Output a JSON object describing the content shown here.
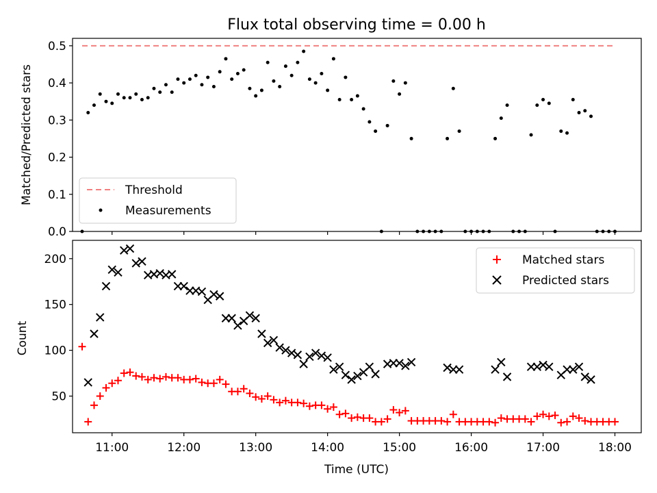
{
  "chart_data": [
    {
      "type": "scatter",
      "title": "Flux total observing time = 0.00 h",
      "xlabel": "",
      "ylabel": "Matched/Predicted stars",
      "xlim": [
        "10:27",
        "18:22"
      ],
      "ylim": [
        0,
        0.52
      ],
      "yticks": [
        "0.0",
        "0.1",
        "0.2",
        "0.3",
        "0.4",
        "0.5"
      ],
      "grid": false,
      "legend_position": "lower-left",
      "threshold": {
        "name": "Threshold",
        "value": 0.5,
        "x_start": "10:35",
        "x_end": "18:00",
        "color": "#f08080"
      },
      "measurements": {
        "name": "Measurements",
        "color": "#000000",
        "points": [
          [
            "10:35",
            0.0
          ],
          [
            "10:40",
            0.32
          ],
          [
            "10:45",
            0.34
          ],
          [
            "10:50",
            0.37
          ],
          [
            "10:55",
            0.35
          ],
          [
            "11:00",
            0.345
          ],
          [
            "11:05",
            0.37
          ],
          [
            "11:10",
            0.36
          ],
          [
            "11:15",
            0.36
          ],
          [
            "11:20",
            0.37
          ],
          [
            "11:25",
            0.355
          ],
          [
            "11:30",
            0.36
          ],
          [
            "11:35",
            0.385
          ],
          [
            "11:40",
            0.375
          ],
          [
            "11:45",
            0.395
          ],
          [
            "11:50",
            0.375
          ],
          [
            "11:55",
            0.41
          ],
          [
            "12:00",
            0.4
          ],
          [
            "12:05",
            0.41
          ],
          [
            "12:10",
            0.42
          ],
          [
            "12:15",
            0.395
          ],
          [
            "12:20",
            0.415
          ],
          [
            "12:25",
            0.39
          ],
          [
            "12:30",
            0.43
          ],
          [
            "12:35",
            0.465
          ],
          [
            "12:40",
            0.41
          ],
          [
            "12:45",
            0.425
          ],
          [
            "12:50",
            0.435
          ],
          [
            "12:55",
            0.385
          ],
          [
            "13:00",
            0.365
          ],
          [
            "13:05",
            0.38
          ],
          [
            "13:10",
            0.455
          ],
          [
            "13:15",
            0.405
          ],
          [
            "13:20",
            0.39
          ],
          [
            "13:25",
            0.445
          ],
          [
            "13:30",
            0.42
          ],
          [
            "13:35",
            0.455
          ],
          [
            "13:40",
            0.485
          ],
          [
            "13:45",
            0.41
          ],
          [
            "13:50",
            0.4
          ],
          [
            "13:55",
            0.425
          ],
          [
            "14:00",
            0.38
          ],
          [
            "14:05",
            0.465
          ],
          [
            "14:10",
            0.355
          ],
          [
            "14:15",
            0.415
          ],
          [
            "14:20",
            0.355
          ],
          [
            "14:25",
            0.365
          ],
          [
            "14:30",
            0.33
          ],
          [
            "14:35",
            0.295
          ],
          [
            "14:40",
            0.27
          ],
          [
            "14:45",
            0.0
          ],
          [
            "14:50",
            0.285
          ],
          [
            "14:55",
            0.405
          ],
          [
            "15:00",
            0.37
          ],
          [
            "15:05",
            0.4
          ],
          [
            "15:10",
            0.25
          ],
          [
            "15:15",
            0.0
          ],
          [
            "15:20",
            0.0
          ],
          [
            "15:25",
            0.0
          ],
          [
            "15:30",
            0.0
          ],
          [
            "15:35",
            0.0
          ],
          [
            "15:40",
            0.25
          ],
          [
            "15:45",
            0.385
          ],
          [
            "15:50",
            0.27
          ],
          [
            "15:55",
            0.0
          ],
          [
            "16:00",
            0.0
          ],
          [
            "16:05",
            0.0
          ],
          [
            "16:10",
            0.0
          ],
          [
            "16:15",
            0.0
          ],
          [
            "16:20",
            0.25
          ],
          [
            "16:25",
            0.305
          ],
          [
            "16:30",
            0.34
          ],
          [
            "16:35",
            0.0
          ],
          [
            "16:40",
            0.0
          ],
          [
            "16:45",
            0.0
          ],
          [
            "16:50",
            0.26
          ],
          [
            "16:55",
            0.34
          ],
          [
            "17:00",
            0.355
          ],
          [
            "17:05",
            0.345
          ],
          [
            "17:10",
            0.0
          ],
          [
            "17:15",
            0.27
          ],
          [
            "17:20",
            0.265
          ],
          [
            "17:25",
            0.355
          ],
          [
            "17:30",
            0.32
          ],
          [
            "17:35",
            0.325
          ],
          [
            "17:40",
            0.31
          ],
          [
            "17:45",
            0.0
          ],
          [
            "17:50",
            0.0
          ],
          [
            "17:55",
            0.0
          ],
          [
            "18:00",
            0.0
          ]
        ]
      }
    },
    {
      "type": "scatter",
      "title": "",
      "xlabel": "Time (UTC)",
      "ylabel": "Count",
      "xlim": [
        "10:27",
        "18:22"
      ],
      "ylim": [
        10,
        220
      ],
      "xticks": [
        "11:00",
        "12:00",
        "13:00",
        "14:00",
        "15:00",
        "16:00",
        "17:00",
        "18:00"
      ],
      "yticks": [
        "50",
        "100",
        "150",
        "200"
      ],
      "grid": false,
      "legend_position": "top-right",
      "series": [
        {
          "name": "Matched stars",
          "marker": "+",
          "color": "#ff0000",
          "points": [
            [
              "10:35",
              104
            ],
            [
              "10:40",
              22
            ],
            [
              "10:45",
              40
            ],
            [
              "10:50",
              50
            ],
            [
              "10:55",
              59
            ],
            [
              "11:00",
              64
            ],
            [
              "11:05",
              67
            ],
            [
              "11:10",
              75
            ],
            [
              "11:15",
              76
            ],
            [
              "11:20",
              72
            ],
            [
              "11:25",
              71
            ],
            [
              "11:30",
              68
            ],
            [
              "11:35",
              70
            ],
            [
              "11:40",
              69
            ],
            [
              "11:45",
              71
            ],
            [
              "11:50",
              70
            ],
            [
              "11:55",
              70
            ],
            [
              "12:00",
              68
            ],
            [
              "12:05",
              68
            ],
            [
              "12:10",
              69
            ],
            [
              "12:15",
              65
            ],
            [
              "12:20",
              64
            ],
            [
              "12:25",
              64
            ],
            [
              "12:30",
              68
            ],
            [
              "12:35",
              63
            ],
            [
              "12:40",
              55
            ],
            [
              "12:45",
              55
            ],
            [
              "12:50",
              58
            ],
            [
              "12:55",
              53
            ],
            [
              "13:00",
              49
            ],
            [
              "13:05",
              47
            ],
            [
              "13:10",
              50
            ],
            [
              "13:15",
              46
            ],
            [
              "13:20",
              43
            ],
            [
              "13:25",
              45
            ],
            [
              "13:30",
              43
            ],
            [
              "13:35",
              43
            ],
            [
              "13:40",
              42
            ],
            [
              "13:45",
              39
            ],
            [
              "13:50",
              40
            ],
            [
              "13:55",
              40
            ],
            [
              "14:00",
              36
            ],
            [
              "14:05",
              38
            ],
            [
              "14:10",
              30
            ],
            [
              "14:15",
              31
            ],
            [
              "14:20",
              26
            ],
            [
              "14:25",
              27
            ],
            [
              "14:30",
              26
            ],
            [
              "14:35",
              26
            ],
            [
              "14:40",
              22
            ],
            [
              "14:45",
              22
            ],
            [
              "14:50",
              25
            ],
            [
              "14:55",
              35
            ],
            [
              "15:00",
              32
            ],
            [
              "15:05",
              34
            ],
            [
              "15:10",
              23
            ],
            [
              "15:15",
              23
            ],
            [
              "15:20",
              23
            ],
            [
              "15:25",
              23
            ],
            [
              "15:30",
              23
            ],
            [
              "15:35",
              23
            ],
            [
              "15:40",
              22
            ],
            [
              "15:45",
              30
            ],
            [
              "15:50",
              22
            ],
            [
              "15:55",
              22
            ],
            [
              "16:00",
              22
            ],
            [
              "16:05",
              22
            ],
            [
              "16:10",
              22
            ],
            [
              "16:15",
              22
            ],
            [
              "16:20",
              21
            ],
            [
              "16:25",
              26
            ],
            [
              "16:30",
              25
            ],
            [
              "16:35",
              25
            ],
            [
              "16:40",
              25
            ],
            [
              "16:45",
              25
            ],
            [
              "16:50",
              22
            ],
            [
              "16:55",
              28
            ],
            [
              "17:00",
              30
            ],
            [
              "17:05",
              28
            ],
            [
              "17:10",
              29
            ],
            [
              "17:15",
              21
            ],
            [
              "17:20",
              22
            ],
            [
              "17:25",
              28
            ],
            [
              "17:30",
              26
            ],
            [
              "17:35",
              23
            ],
            [
              "17:40",
              22
            ],
            [
              "17:45",
              22
            ],
            [
              "17:50",
              22
            ],
            [
              "17:55",
              22
            ],
            [
              "18:00",
              22
            ]
          ]
        },
        {
          "name": "Predicted stars",
          "marker": "x",
          "color": "#000000",
          "points": [
            [
              "10:40",
              65
            ],
            [
              "10:45",
              118
            ],
            [
              "10:50",
              136
            ],
            [
              "10:55",
              170
            ],
            [
              "11:00",
              188
            ],
            [
              "11:05",
              185
            ],
            [
              "11:10",
              209
            ],
            [
              "11:15",
              211
            ],
            [
              "11:20",
              195
            ],
            [
              "11:25",
              197
            ],
            [
              "11:30",
              182
            ],
            [
              "11:35",
              183
            ],
            [
              "11:40",
              184
            ],
            [
              "11:45",
              182
            ],
            [
              "11:50",
              183
            ],
            [
              "11:55",
              170
            ],
            [
              "12:00",
              170
            ],
            [
              "12:05",
              165
            ],
            [
              "12:10",
              165
            ],
            [
              "12:15",
              164
            ],
            [
              "12:20",
              155
            ],
            [
              "12:25",
              161
            ],
            [
              "12:30",
              159
            ],
            [
              "12:35",
              135
            ],
            [
              "12:40",
              135
            ],
            [
              "12:45",
              127
            ],
            [
              "12:50",
              132
            ],
            [
              "12:55",
              138
            ],
            [
              "13:00",
              135
            ],
            [
              "13:05",
              118
            ],
            [
              "13:10",
              108
            ],
            [
              "13:15",
              111
            ],
            [
              "13:20",
              103
            ],
            [
              "13:25",
              100
            ],
            [
              "13:30",
              97
            ],
            [
              "13:35",
              95
            ],
            [
              "13:40",
              85
            ],
            [
              "13:45",
              93
            ],
            [
              "13:50",
              97
            ],
            [
              "13:55",
              94
            ],
            [
              "14:00",
              92
            ],
            [
              "14:05",
              79
            ],
            [
              "14:10",
              82
            ],
            [
              "14:15",
              73
            ],
            [
              "14:20",
              68
            ],
            [
              "14:25",
              72
            ],
            [
              "14:30",
              76
            ],
            [
              "14:35",
              82
            ],
            [
              "14:40",
              74
            ],
            [
              "14:50",
              85
            ],
            [
              "14:55",
              86
            ],
            [
              "15:00",
              86
            ],
            [
              "15:05",
              83
            ],
            [
              "15:10",
              87
            ],
            [
              "15:40",
              81
            ],
            [
              "15:45",
              79
            ],
            [
              "15:50",
              79
            ],
            [
              "16:20",
              79
            ],
            [
              "16:25",
              87
            ],
            [
              "16:30",
              71
            ],
            [
              "16:50",
              82
            ],
            [
              "16:55",
              82
            ],
            [
              "17:00",
              84
            ],
            [
              "17:05",
              82
            ],
            [
              "17:15",
              73
            ],
            [
              "17:20",
              79
            ],
            [
              "17:25",
              79
            ],
            [
              "17:30",
              82
            ],
            [
              "17:35",
              71
            ],
            [
              "17:40",
              68
            ]
          ]
        }
      ]
    }
  ]
}
